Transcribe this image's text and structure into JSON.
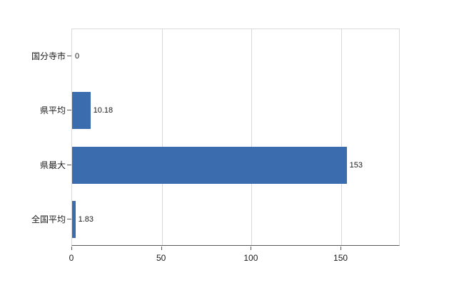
{
  "chart_data": {
    "type": "bar",
    "orientation": "horizontal",
    "title": "",
    "categories": [
      "国分寺市",
      "県平均",
      "県最大",
      "全国平均"
    ],
    "values": [
      0,
      10.18,
      153,
      1.83
    ],
    "value_labels": [
      "0",
      "10.18",
      "153",
      "1.83"
    ],
    "xlim": [
      0,
      183
    ],
    "xticks": [
      0,
      50,
      100,
      150
    ],
    "xtick_labels": [
      "0",
      "50",
      "100",
      "150"
    ],
    "bar_color": "#3a6cae",
    "grid": true,
    "gridline_color": "#d9d9d9",
    "axis_color": "#595959",
    "legend_position": "none"
  }
}
